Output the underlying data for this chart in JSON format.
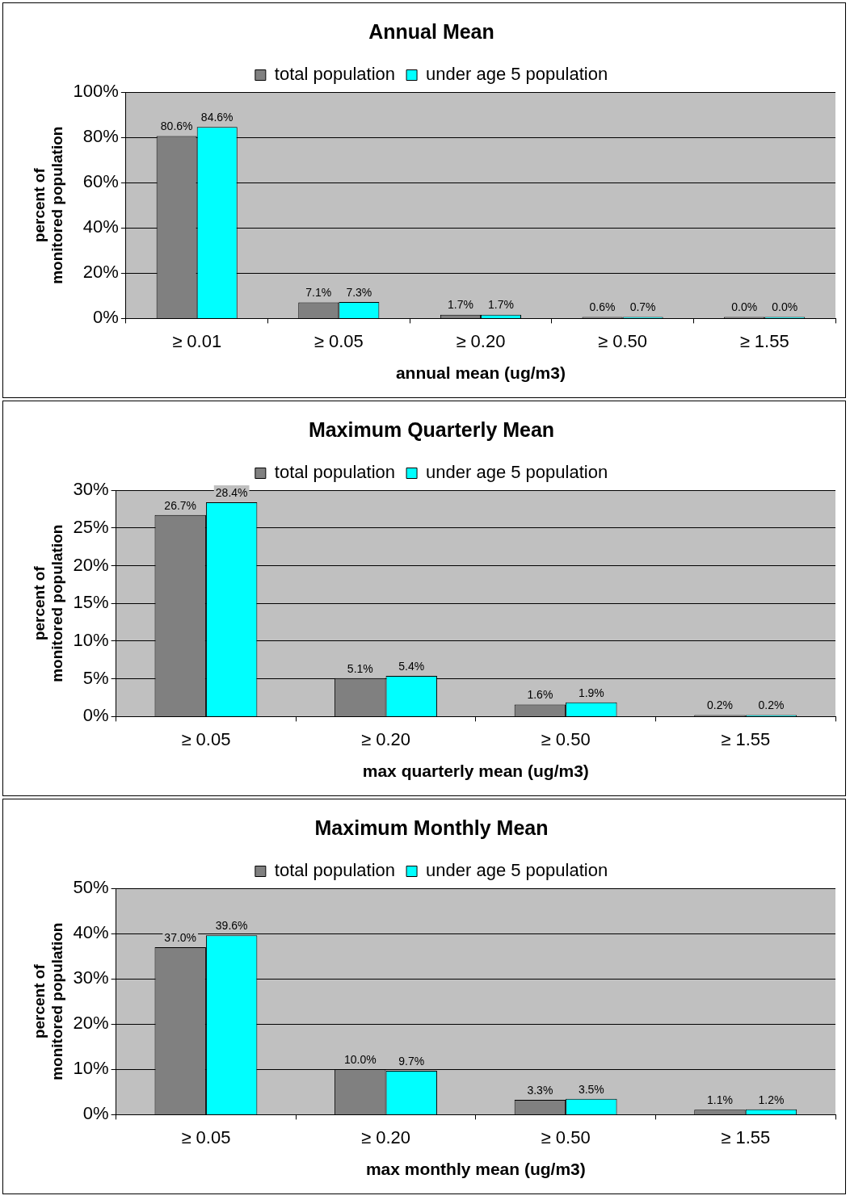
{
  "chart_data": [
    {
      "type": "bar",
      "title": "Annual Mean",
      "xlabel": "annual mean (ug/m3)",
      "ylabel": "percent of monitored population",
      "categories": [
        "≥ 0.01",
        "≥ 0.05",
        "≥ 0.20",
        "≥ 0.50",
        "≥ 1.55"
      ],
      "series": [
        {
          "name": "total population",
          "color": "#808080",
          "values": [
            80.6,
            7.1,
            1.7,
            0.6,
            0.0
          ],
          "value_labels": [
            "80.6%",
            "7.1%",
            "1.7%",
            "0.6%",
            "0.0%"
          ]
        },
        {
          "name": "under age 5 population",
          "color": "#00ffff",
          "values": [
            84.6,
            7.3,
            1.7,
            0.7,
            0.0
          ],
          "value_labels": [
            "84.6%",
            "7.3%",
            "1.7%",
            "0.7%",
            "0.0%"
          ]
        }
      ],
      "ylim": [
        0,
        100
      ],
      "yticks": [
        {
          "value": 0,
          "label": "0%"
        },
        {
          "value": 20,
          "label": "20%"
        },
        {
          "value": 40,
          "label": "40%"
        },
        {
          "value": 60,
          "label": "60%"
        },
        {
          "value": 80,
          "label": "80%"
        },
        {
          "value": 100,
          "label": "100%"
        }
      ],
      "grid": "y",
      "legend": "top"
    },
    {
      "type": "bar",
      "title": "Maximum Quarterly Mean",
      "xlabel": "max quarterly mean (ug/m3)",
      "ylabel": "percent of monitored population",
      "categories": [
        "≥ 0.05",
        "≥ 0.20",
        "≥ 0.50",
        "≥ 1.55"
      ],
      "series": [
        {
          "name": "total population",
          "color": "#808080",
          "values": [
            26.7,
            5.1,
            1.6,
            0.2
          ],
          "value_labels": [
            "26.7%",
            "5.1%",
            "1.6%",
            "0.2%"
          ]
        },
        {
          "name": "under age 5 population",
          "color": "#00ffff",
          "values": [
            28.4,
            5.4,
            1.9,
            0.2
          ],
          "value_labels": [
            "28.4%",
            "5.4%",
            "1.9%",
            "0.2%"
          ]
        }
      ],
      "ylim": [
        0,
        30
      ],
      "yticks": [
        {
          "value": 0,
          "label": "0%"
        },
        {
          "value": 5,
          "label": "5%"
        },
        {
          "value": 10,
          "label": "10%"
        },
        {
          "value": 15,
          "label": "15%"
        },
        {
          "value": 20,
          "label": "20%"
        },
        {
          "value": 25,
          "label": "25%"
        },
        {
          "value": 30,
          "label": "30%"
        }
      ],
      "grid": "y",
      "legend": "top"
    },
    {
      "type": "bar",
      "title": "Maximum Monthly Mean",
      "xlabel": "max monthly mean (ug/m3)",
      "ylabel": "percent of monitored population",
      "categories": [
        "≥ 0.05",
        "≥ 0.20",
        "≥ 0.50",
        "≥ 1.55"
      ],
      "series": [
        {
          "name": "total population",
          "color": "#808080",
          "values": [
            37.0,
            10.0,
            3.3,
            1.1
          ],
          "value_labels": [
            "37.0%",
            "10.0%",
            "3.3%",
            "1.1%"
          ]
        },
        {
          "name": "under age 5 population",
          "color": "#00ffff",
          "values": [
            39.6,
            9.7,
            3.5,
            1.2
          ],
          "value_labels": [
            "39.6%",
            "9.7%",
            "3.5%",
            "1.2%"
          ]
        }
      ],
      "ylim": [
        0,
        50
      ],
      "yticks": [
        {
          "value": 0,
          "label": "0%"
        },
        {
          "value": 10,
          "label": "10%"
        },
        {
          "value": 20,
          "label": "20%"
        },
        {
          "value": 30,
          "label": "30%"
        },
        {
          "value": 40,
          "label": "40%"
        },
        {
          "value": 50,
          "label": "50%"
        }
      ],
      "grid": "y",
      "legend": "top"
    }
  ]
}
